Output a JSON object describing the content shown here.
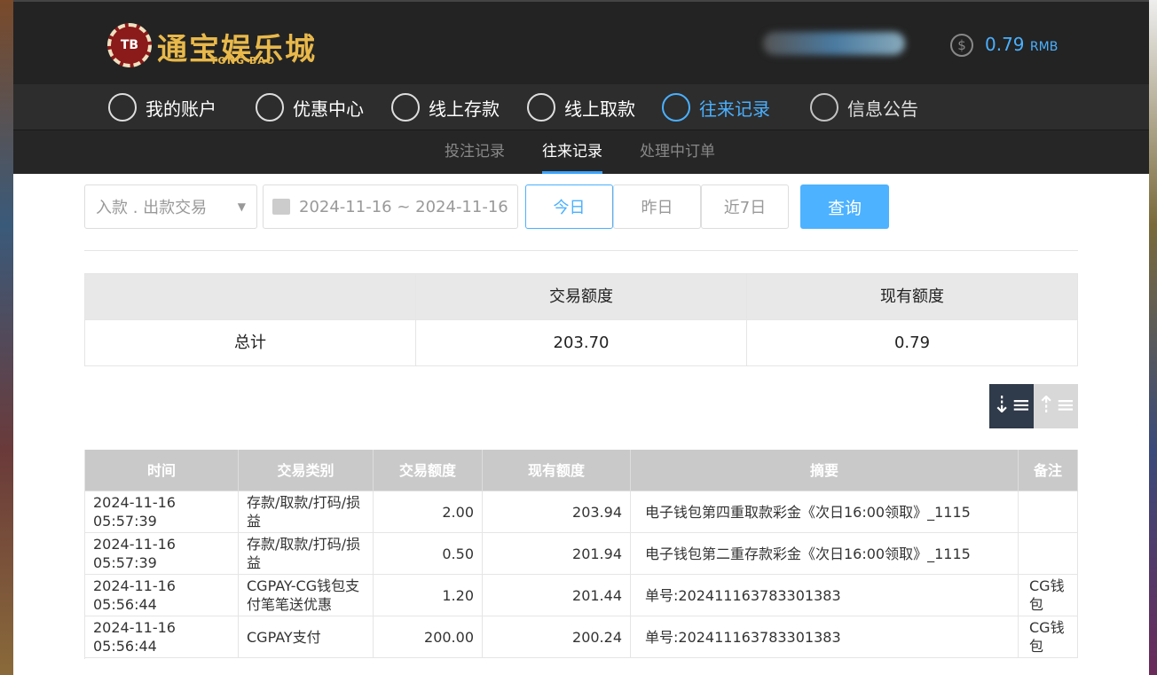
{
  "header": {
    "logo_badge": "TB",
    "logo_title": "通宝娱乐城",
    "logo_subtitle": "TONG BAO",
    "balance": "0.79",
    "currency": "RMB"
  },
  "nav": [
    "我的账户",
    "优惠中心",
    "线上存款",
    "线上取款",
    "往来记录",
    "信息公告"
  ],
  "tabs": [
    "投注记录",
    "往来记录",
    "处理中订单"
  ],
  "filters": {
    "type": "入款 . 出款交易",
    "date_range": "2024-11-16 ~ 2024-11-16",
    "quick": [
      "今日",
      "昨日",
      "近7日"
    ],
    "search": "查询"
  },
  "summary": {
    "headers": [
      "交易额度",
      "现有额度"
    ],
    "label": "总计",
    "values": [
      "203.70",
      "0.79"
    ]
  },
  "table": {
    "headers": [
      "时间",
      "交易类别",
      "交易额度",
      "现有额度",
      "摘要",
      "备注"
    ],
    "rows": [
      [
        "2024-11-16 05:57:39",
        "存款/取款/打码/损益",
        "2.00",
        "203.94",
        "电子钱包第四重取款彩金《次日16:00领取》_1115",
        null
      ],
      [
        "2024-11-16 05:57:39",
        "存款/取款/打码/损益",
        "0.50",
        "201.94",
        "电子钱包第二重存款彩金《次日16:00领取》_1115",
        null
      ],
      [
        "2024-11-16 05:56:44",
        "CGPAY-CG钱包支付笔笔送优惠",
        "1.20",
        "201.44",
        "单号:202411163783301383",
        "CG钱包"
      ],
      [
        "2024-11-16 05:56:44",
        "CGPAY支付",
        "200.00",
        "200.24",
        "单号:202411163783301383",
        "CG钱包"
      ]
    ]
  }
}
